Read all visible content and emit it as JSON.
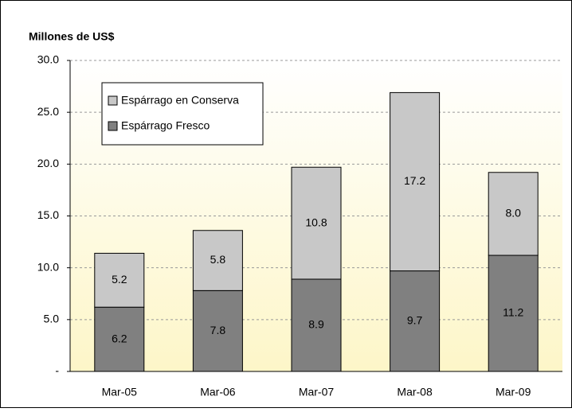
{
  "chart_data": {
    "type": "stacked_bar",
    "y_label": "Millones de US$",
    "categories": [
      "Mar-05",
      "Mar-06",
      "Mar-07",
      "Mar-08",
      "Mar-09"
    ],
    "series": [
      {
        "name": "Espárrago Fresco",
        "color": "#808080",
        "values": [
          6.2,
          7.8,
          8.9,
          9.7,
          11.2
        ],
        "value_labels": [
          "6.2",
          "7.8",
          "8.9",
          "9.7",
          "11.2"
        ]
      },
      {
        "name": "Espárrago en Conserva",
        "color": "#c8c8c8",
        "values": [
          5.2,
          5.8,
          10.8,
          17.2,
          8.0
        ],
        "value_labels": [
          "5.2",
          "5.8",
          "10.8",
          "17.2",
          "8.0"
        ]
      }
    ],
    "ylim": [
      0,
      30
    ],
    "yticks": [
      {
        "value": 0,
        "label": "-"
      },
      {
        "value": 5,
        "label": "5.0"
      },
      {
        "value": 10,
        "label": "10.0"
      },
      {
        "value": 15,
        "label": "15.0"
      },
      {
        "value": 20,
        "label": "20.0"
      },
      {
        "value": 25,
        "label": "25.0"
      },
      {
        "value": 30,
        "label": "30.0"
      }
    ],
    "grid": true,
    "legend": "upper-left"
  }
}
